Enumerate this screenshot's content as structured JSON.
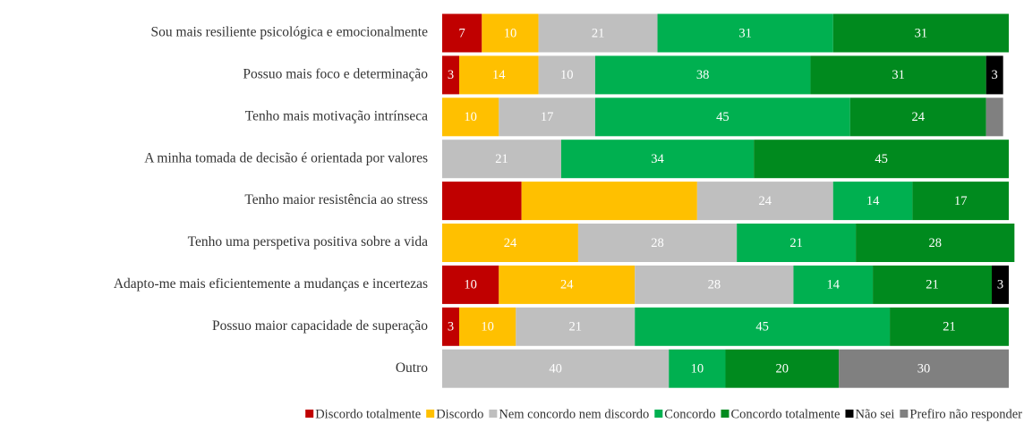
{
  "chart_data": {
    "type": "stacked-bar-horizontal",
    "categories": [
      "Sou mais resiliente psicológica e emocionalmente",
      "Possuo mais foco e determinação",
      "Tenho mais motivação intrínseca",
      "A minha tomada de decisão é orientada por valores",
      "Tenho maior resistência ao stress",
      "Tenho uma perspetiva positiva sobre a vida",
      "Adapto-me mais eficientemente a mudanças e incertezas",
      "Possuo maior capacidade de superação",
      "Outro"
    ],
    "xlim": [
      0,
      100
    ],
    "legend": "bottom",
    "series": [
      {
        "name": "Discordo totalmente",
        "color": "#c00000",
        "values": [
          7,
          3,
          null,
          null,
          14,
          null,
          10,
          3,
          null
        ],
        "value_labels": [
          7,
          3,
          null,
          null,
          null,
          null,
          10,
          3,
          null
        ]
      },
      {
        "name": "Discordo",
        "color": "#ffc000",
        "values": [
          10,
          14,
          10,
          null,
          31,
          24,
          24,
          10,
          null
        ],
        "value_labels": [
          10,
          14,
          10,
          null,
          null,
          24,
          24,
          10,
          null
        ]
      },
      {
        "name": "Nem concordo nem discordo",
        "color": "#bfbfbf",
        "values": [
          21,
          10,
          17,
          21,
          24,
          28,
          28,
          21,
          40
        ],
        "value_labels": [
          21,
          10,
          17,
          21,
          24,
          28,
          28,
          21,
          40
        ]
      },
      {
        "name": "Concordo",
        "color": "#00b050",
        "values": [
          31,
          38,
          45,
          34,
          14,
          21,
          14,
          45,
          10
        ],
        "value_labels": [
          31,
          38,
          45,
          34,
          14,
          21,
          14,
          45,
          10
        ]
      },
      {
        "name": "Concordo totalmente",
        "color": "#008a1e",
        "values": [
          31,
          31,
          24,
          45,
          17,
          28,
          21,
          21,
          20
        ],
        "value_labels": [
          31,
          31,
          24,
          45,
          17,
          28,
          21,
          21,
          20
        ]
      },
      {
        "name": "Não sei",
        "color": "#000000",
        "values": [
          null,
          3,
          null,
          null,
          null,
          null,
          3,
          null,
          null
        ],
        "value_labels": [
          null,
          3,
          null,
          null,
          null,
          null,
          3,
          null,
          null
        ]
      },
      {
        "name": "Prefiro não responder",
        "color": "#808080",
        "values": [
          null,
          null,
          3,
          null,
          null,
          null,
          null,
          null,
          30
        ],
        "value_labels": [
          null,
          null,
          null,
          null,
          null,
          null,
          null,
          null,
          30
        ]
      }
    ]
  }
}
